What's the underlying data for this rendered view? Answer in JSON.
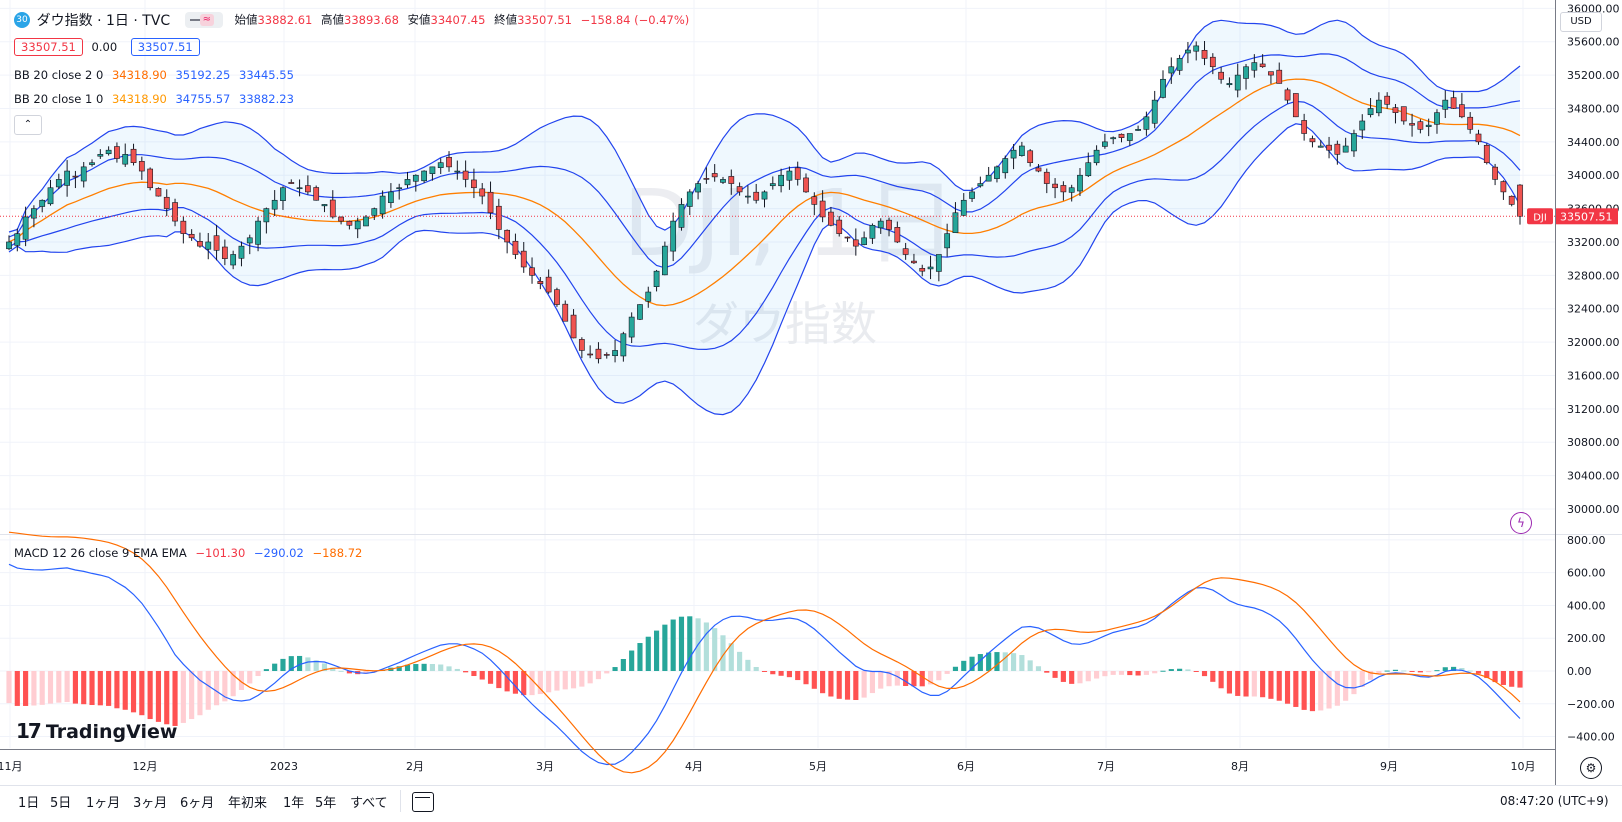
{
  "header": {
    "badge": "30",
    "symbol": "ダウ指数 · 1日 · TVC",
    "ohlc": {
      "open_label": "始値",
      "open": "33882.61",
      "high_label": "高値",
      "high": "33893.68",
      "low_label": "安値",
      "low": "33407.45",
      "close_label": "終値",
      "close": "33507.51",
      "change": "−158.84 (−0.47%)"
    },
    "sell_price": "33507.51",
    "spread": "0.00",
    "buy_price": "33507.51",
    "currency": "USD"
  },
  "indicators": {
    "bb2": {
      "name": "BB 20 close 2 0",
      "basis": "34318.90",
      "upper": "35192.25",
      "lower": "33445.55"
    },
    "bb1": {
      "name": "BB 20 close 1 0",
      "basis": "34318.90",
      "upper": "34755.57",
      "lower": "33882.23"
    },
    "macd": {
      "name": "MACD 12 26 close 9 EMA EMA",
      "hist": "−101.30",
      "macd": "−290.02",
      "signal": "−188.72"
    }
  },
  "watermark": {
    "main": "DJI, 1日",
    "sub": "ダウ指数"
  },
  "last_price": {
    "symbol": "DJI",
    "value": "33507.51"
  },
  "brand": "TradingView",
  "timeframes": [
    "1日",
    "5日",
    "1ヶ月",
    "3ヶ月",
    "6ヶ月",
    "年初来",
    "1年",
    "5年",
    "すべて"
  ],
  "clock": "08:47:20 (UTC+9)",
  "colors": {
    "up": "#26a69a",
    "down": "#ef5350",
    "basis": "#ff7f00",
    "band": "#2244ee",
    "macd": "#2962ff",
    "signal": "#ff6d00"
  },
  "chart_data": [
    {
      "type": "candlestick",
      "title": "ダウ指数 · 1日 · TVC",
      "ylim": [
        29700,
        36100
      ],
      "y_ticks": [
        30000,
        30400,
        30800,
        31200,
        31600,
        32000,
        32400,
        32800,
        33200,
        33600,
        34000,
        34400,
        34800,
        35200,
        35600,
        36000
      ],
      "y_tick_labels": [
        "30000.00",
        "30400.00",
        "30800.00",
        "31200.00",
        "31600.00",
        "32000.00",
        "32400.00",
        "32800.00",
        "33200.00",
        "33600.00",
        "34000.00",
        "34400.00",
        "34800.00",
        "35200.00",
        "35600.00",
        "36000.00"
      ],
      "x_tick_labels": [
        "11月",
        "12月",
        "2023",
        "2月",
        "3月",
        "4月",
        "5月",
        "6月",
        "7月",
        "8月",
        "9月",
        "10月"
      ],
      "close": [
        33200,
        33300,
        33500,
        33600,
        33700,
        33850,
        33950,
        34050,
        33980,
        34100,
        34150,
        34250,
        34300,
        34200,
        34250,
        34150,
        34050,
        33850,
        33750,
        33600,
        33450,
        33300,
        33250,
        33150,
        33200,
        33100,
        33000,
        33050,
        33150,
        33250,
        33450,
        33600,
        33700,
        33850,
        33900,
        33850,
        33800,
        33700,
        33650,
        33500,
        33450,
        33400,
        33450,
        33500,
        33600,
        33750,
        33800,
        33850,
        33950,
        34000,
        34050,
        34100,
        34150,
        34100,
        34050,
        33950,
        33850,
        33750,
        33550,
        33350,
        33200,
        33050,
        32900,
        32800,
        32700,
        32600,
        32450,
        32250,
        32050,
        31900,
        31850,
        31800,
        31850,
        31900,
        32100,
        32300,
        32450,
        32600,
        32850,
        33150,
        33450,
        33650,
        33800,
        33900,
        33950,
        33980,
        33950,
        33900,
        33800,
        33750,
        33700,
        33800,
        33900,
        34000,
        34050,
        33950,
        33800,
        33650,
        33500,
        33400,
        33300,
        33250,
        33150,
        33250,
        33400,
        33450,
        33350,
        33200,
        33050,
        32950,
        32850,
        32900,
        33050,
        33300,
        33550,
        33700,
        33800,
        33900,
        34000,
        34100,
        34200,
        34300,
        34350,
        34150,
        34050,
        33900,
        33850,
        33800,
        33850,
        34000,
        34150,
        34300,
        34400,
        34450,
        34450,
        34500,
        34550,
        34700,
        34900,
        35150,
        35300,
        35400,
        35500,
        35550,
        35400,
        35300,
        35150,
        35100,
        35200,
        35300,
        35350,
        35300,
        35200,
        35100,
        34900,
        34700,
        34500,
        34400,
        34350,
        34300,
        34250,
        34350,
        34500,
        34650,
        34800,
        34900,
        34850,
        34750,
        34650,
        34600,
        34550,
        34600,
        34750,
        34900,
        34800,
        34700,
        34550,
        34400,
        34150,
        33950,
        33800,
        33650,
        33507.51
      ],
      "bollinger": {
        "period": 20,
        "mult": [
          1,
          2
        ],
        "basis_last": 34318.9,
        "upper2_last": 35192.25,
        "lower2_last": 33445.55,
        "upper1_last": 34755.57,
        "lower1_last": 33882.23
      },
      "last_price": 33507.51
    },
    {
      "type": "macd",
      "title": "MACD 12 26 close 9 EMA EMA",
      "ylim": [
        -470,
        830
      ],
      "y_ticks": [
        -400,
        -200,
        0,
        200,
        400,
        600,
        800
      ],
      "y_tick_labels": [
        "−400.00",
        "−200.00",
        "0.00",
        "200.00",
        "400.00",
        "600.00",
        "800.00"
      ],
      "last": {
        "hist": -101.3,
        "macd": -290.02,
        "signal": -188.72
      }
    }
  ]
}
